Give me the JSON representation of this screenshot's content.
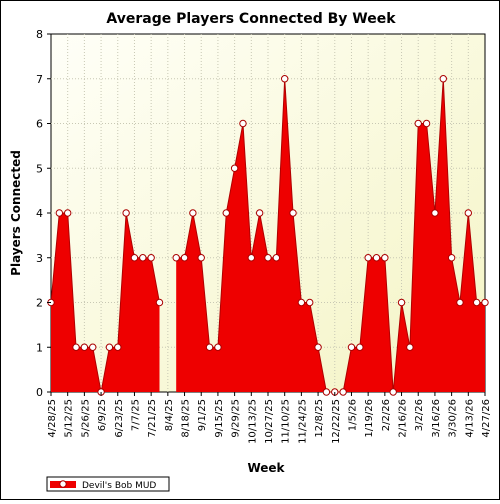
{
  "chart_data": {
    "type": "area",
    "title": "Average Players Connected By Week",
    "xlabel": "Week",
    "ylabel": "Players Connected",
    "ylim": [
      0,
      8
    ],
    "y_ticks": [
      0,
      1,
      2,
      3,
      4,
      5,
      6,
      7,
      8
    ],
    "grid": true,
    "legend_position": "bottom-left",
    "x_tick_labels": [
      "4/28/25",
      "5/12/25",
      "5/26/25",
      "6/9/25",
      "6/23/25",
      "7/7/25",
      "7/21/25",
      "8/4/25",
      "8/18/25",
      "9/1/25",
      "9/15/25",
      "9/29/25",
      "10/13/25",
      "10/27/25",
      "11/10/25",
      "11/24/25",
      "12/8/25",
      "12/22/25",
      "1/5/26",
      "1/19/26",
      "2/2/26",
      "2/16/26",
      "3/2/26",
      "3/16/26",
      "3/30/26",
      "4/13/26",
      "4/27/26"
    ],
    "weeks": [
      "4/28/25",
      "5/5/25",
      "5/12/25",
      "5/19/25",
      "5/26/25",
      "6/2/25",
      "6/9/25",
      "6/16/25",
      "6/23/25",
      "6/30/25",
      "7/7/25",
      "7/14/25",
      "7/21/25",
      "7/28/25",
      "8/4/25",
      "8/11/25",
      "8/18/25",
      "8/25/25",
      "9/1/25",
      "9/8/25",
      "9/15/25",
      "9/22/25",
      "9/29/25",
      "10/6/25",
      "10/13/25",
      "10/20/25",
      "10/27/25",
      "11/3/25",
      "11/10/25",
      "11/17/25",
      "11/24/25",
      "12/1/25",
      "12/8/25",
      "12/15/25",
      "12/22/25",
      "12/29/25",
      "1/5/26",
      "1/12/26",
      "1/19/26",
      "1/26/26",
      "2/2/26",
      "2/9/26",
      "2/16/26",
      "2/23/26",
      "3/2/26",
      "3/9/26",
      "3/16/26",
      "3/23/26",
      "3/30/26",
      "4/6/26",
      "4/13/26",
      "4/20/26",
      "4/27/26"
    ],
    "series": [
      {
        "name": "Devil's Bob MUD",
        "color": "#ee0000",
        "values": [
          2,
          4,
          4,
          1,
          1,
          1,
          0,
          1,
          1,
          4,
          3,
          3,
          3,
          2,
          null,
          3,
          3,
          4,
          3,
          1,
          1,
          4,
          5,
          6,
          3,
          4,
          3,
          3,
          7,
          4,
          2,
          2,
          1,
          0,
          0,
          0,
          1,
          1,
          3,
          3,
          3,
          0,
          2,
          1,
          6,
          6,
          4,
          7,
          3,
          2,
          4,
          2,
          2
        ]
      }
    ]
  }
}
